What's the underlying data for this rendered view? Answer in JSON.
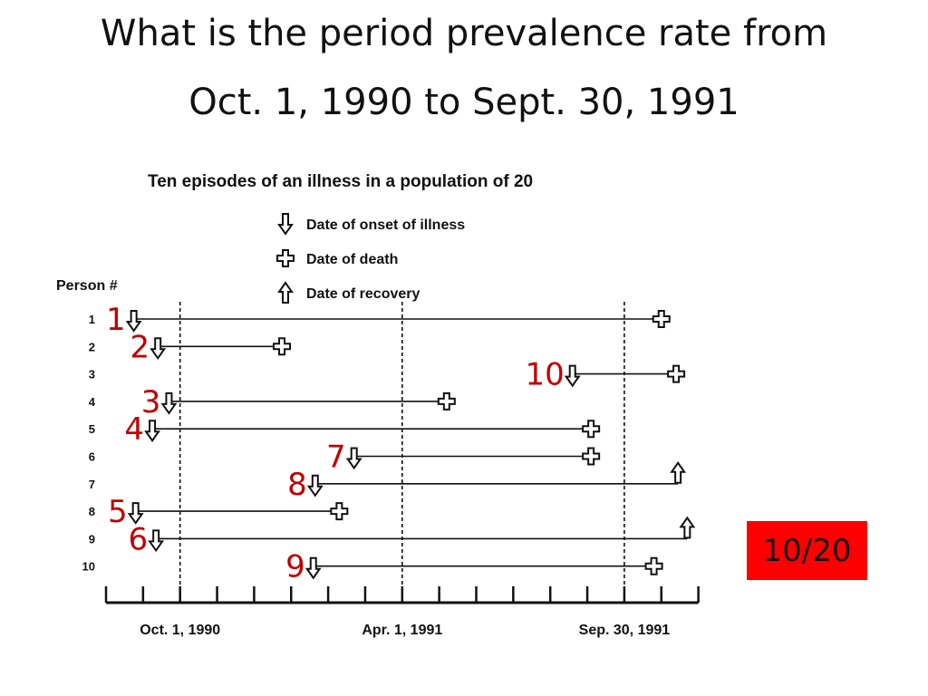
{
  "title": {
    "line1": "What is the period prevalence rate from",
    "line2": "Oct. 1, 1990 to Sept. 30, 1991"
  },
  "figure": {
    "heading": "Ten episodes of an illness in a population of 20",
    "legend": [
      {
        "symbol": "onset-arrow-icon",
        "label": "Date of onset of illness"
      },
      {
        "symbol": "death-cross-icon",
        "label": "Date of death"
      },
      {
        "symbol": "recovery-arrow-icon",
        "label": "Date of recovery"
      }
    ],
    "person_axis_label": "Person #",
    "persons": [
      "1",
      "2",
      "3",
      "4",
      "5",
      "6",
      "7",
      "8",
      "9",
      "10"
    ],
    "timeline_labels": [
      "Oct. 1, 1990",
      "Apr. 1, 1991",
      "Sep. 30, 1991"
    ],
    "episodes": [
      {
        "person": 1,
        "episode_label": "1",
        "onset_month": 0.75,
        "end_month": 15.0,
        "outcome": "death"
      },
      {
        "person": 2,
        "episode_label": "2",
        "onset_month": 1.4,
        "end_month": 4.75,
        "outcome": "death"
      },
      {
        "person": 3,
        "episode_label": "10",
        "onset_month": 12.6,
        "end_month": 15.4,
        "outcome": "death"
      },
      {
        "person": 4,
        "episode_label": "3",
        "onset_month": 1.7,
        "end_month": 9.2,
        "outcome": "death"
      },
      {
        "person": 5,
        "episode_label": "4",
        "onset_month": 1.25,
        "end_month": 13.1,
        "outcome": "death"
      },
      {
        "person": 6,
        "episode_label": "7",
        "onset_month": 6.7,
        "end_month": 13.1,
        "outcome": "death"
      },
      {
        "person": 7,
        "episode_label": "8",
        "onset_month": 5.65,
        "end_month": 15.45,
        "outcome": "recovery"
      },
      {
        "person": 8,
        "episode_label": "5",
        "onset_month": 0.8,
        "end_month": 6.3,
        "outcome": "death"
      },
      {
        "person": 9,
        "episode_label": "6",
        "onset_month": 1.35,
        "end_month": 15.7,
        "outcome": "recovery"
      },
      {
        "person": 10,
        "episode_label": "9",
        "onset_month": 5.6,
        "end_month": 14.8,
        "outcome": "death"
      }
    ]
  },
  "answer": "10/20",
  "colors": {
    "episode_label": "#c00000",
    "answer_box": "#ff0000",
    "figure_ink": "#111111"
  }
}
